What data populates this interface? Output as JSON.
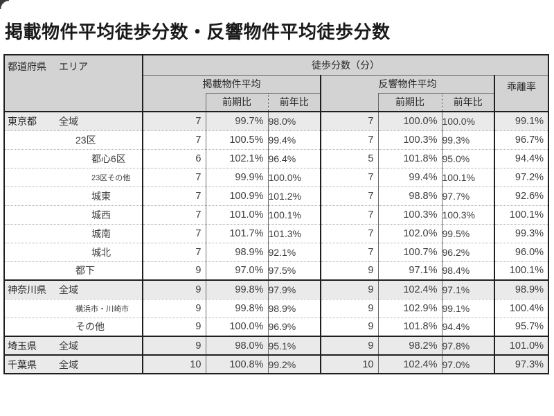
{
  "title": "掲載物件平均徒歩分数・反響物件平均徒歩分数",
  "colors": {
    "border-dark": "#1f1f1f",
    "line-thin": "#6b6b6b",
    "line-dot": "#adadad",
    "header-bg": "#d3d3d3",
    "emph-bg": "#eaeaea",
    "text-dark": "#1a1a1a",
    "text-data": "#3c3c3c"
  },
  "table": {
    "header": {
      "area_pref": "都道府県",
      "area_area": "エリア",
      "walk_title": "徒歩分数（分）",
      "listed_group": "掲載物件平均",
      "response_group": "反響物件平均",
      "prev_period": "前期比",
      "prev_year": "前年比",
      "deviation": "乖離率"
    },
    "rows": [
      {
        "pref": "東京都",
        "area": "全域",
        "indent": 0,
        "small": false,
        "emphasis": true,
        "group_start": true,
        "listed_min": "7",
        "listed_prev_period": "99.7%",
        "listed_prev_year": "98.0%",
        "resp_min": "7",
        "resp_prev_period": "100.0%",
        "resp_prev_year": "100.0%",
        "deviation": "99.1%"
      },
      {
        "pref": "",
        "area": "23区",
        "indent": 1,
        "small": false,
        "emphasis": false,
        "group_start": false,
        "listed_min": "7",
        "listed_prev_period": "100.5%",
        "listed_prev_year": "99.4%",
        "resp_min": "7",
        "resp_prev_period": "100.3%",
        "resp_prev_year": "99.3%",
        "deviation": "96.7%"
      },
      {
        "pref": "",
        "area": "都心6区",
        "indent": 2,
        "small": false,
        "emphasis": false,
        "group_start": false,
        "listed_min": "6",
        "listed_prev_period": "102.1%",
        "listed_prev_year": "96.4%",
        "resp_min": "5",
        "resp_prev_period": "101.8%",
        "resp_prev_year": "95.0%",
        "deviation": "94.4%"
      },
      {
        "pref": "",
        "area": "23区その他",
        "indent": 2,
        "small": true,
        "emphasis": false,
        "group_start": false,
        "listed_min": "7",
        "listed_prev_period": "99.9%",
        "listed_prev_year": "100.0%",
        "resp_min": "7",
        "resp_prev_period": "99.4%",
        "resp_prev_year": "100.1%",
        "deviation": "97.2%"
      },
      {
        "pref": "",
        "area": "城東",
        "indent": 2,
        "small": false,
        "emphasis": false,
        "group_start": false,
        "listed_min": "7",
        "listed_prev_period": "100.9%",
        "listed_prev_year": "101.2%",
        "resp_min": "7",
        "resp_prev_period": "98.8%",
        "resp_prev_year": "97.7%",
        "deviation": "92.6%"
      },
      {
        "pref": "",
        "area": "城西",
        "indent": 2,
        "small": false,
        "emphasis": false,
        "group_start": false,
        "listed_min": "7",
        "listed_prev_period": "101.0%",
        "listed_prev_year": "100.1%",
        "resp_min": "7",
        "resp_prev_period": "100.3%",
        "resp_prev_year": "100.3%",
        "deviation": "100.1%"
      },
      {
        "pref": "",
        "area": "城南",
        "indent": 2,
        "small": false,
        "emphasis": false,
        "group_start": false,
        "listed_min": "7",
        "listed_prev_period": "101.7%",
        "listed_prev_year": "101.3%",
        "resp_min": "7",
        "resp_prev_period": "102.0%",
        "resp_prev_year": "99.5%",
        "deviation": "99.3%"
      },
      {
        "pref": "",
        "area": "城北",
        "indent": 2,
        "small": false,
        "emphasis": false,
        "group_start": false,
        "listed_min": "7",
        "listed_prev_period": "98.9%",
        "listed_prev_year": "92.1%",
        "resp_min": "7",
        "resp_prev_period": "100.7%",
        "resp_prev_year": "96.2%",
        "deviation": "96.0%"
      },
      {
        "pref": "",
        "area": "都下",
        "indent": 1,
        "small": false,
        "emphasis": false,
        "group_start": false,
        "listed_min": "9",
        "listed_prev_period": "97.0%",
        "listed_prev_year": "97.5%",
        "resp_min": "9",
        "resp_prev_period": "97.1%",
        "resp_prev_year": "98.4%",
        "deviation": "100.1%"
      },
      {
        "pref": "神奈川県",
        "area": "全域",
        "indent": 0,
        "small": false,
        "emphasis": true,
        "group_start": true,
        "listed_min": "9",
        "listed_prev_period": "99.8%",
        "listed_prev_year": "97.9%",
        "resp_min": "9",
        "resp_prev_period": "102.4%",
        "resp_prev_year": "97.1%",
        "deviation": "98.9%"
      },
      {
        "pref": "",
        "area": "横浜市・川崎市",
        "indent": 1,
        "small": true,
        "emphasis": false,
        "group_start": false,
        "listed_min": "9",
        "listed_prev_period": "99.8%",
        "listed_prev_year": "98.9%",
        "resp_min": "9",
        "resp_prev_period": "102.9%",
        "resp_prev_year": "99.1%",
        "deviation": "100.4%"
      },
      {
        "pref": "",
        "area": "その他",
        "indent": 1,
        "small": false,
        "emphasis": false,
        "group_start": false,
        "listed_min": "9",
        "listed_prev_period": "100.0%",
        "listed_prev_year": "96.9%",
        "resp_min": "9",
        "resp_prev_period": "101.8%",
        "resp_prev_year": "94.4%",
        "deviation": "95.7%"
      },
      {
        "pref": "埼玉県",
        "area": "全域",
        "indent": 0,
        "small": false,
        "emphasis": true,
        "group_start": true,
        "listed_min": "9",
        "listed_prev_period": "98.0%",
        "listed_prev_year": "95.1%",
        "resp_min": "9",
        "resp_prev_period": "98.2%",
        "resp_prev_year": "97.8%",
        "deviation": "101.0%"
      },
      {
        "pref": "千葉県",
        "area": "全域",
        "indent": 0,
        "small": false,
        "emphasis": true,
        "group_start": true,
        "listed_min": "10",
        "listed_prev_period": "100.8%",
        "listed_prev_year": "99.2%",
        "resp_min": "10",
        "resp_prev_period": "102.4%",
        "resp_prev_year": "97.0%",
        "deviation": "97.3%"
      }
    ]
  }
}
